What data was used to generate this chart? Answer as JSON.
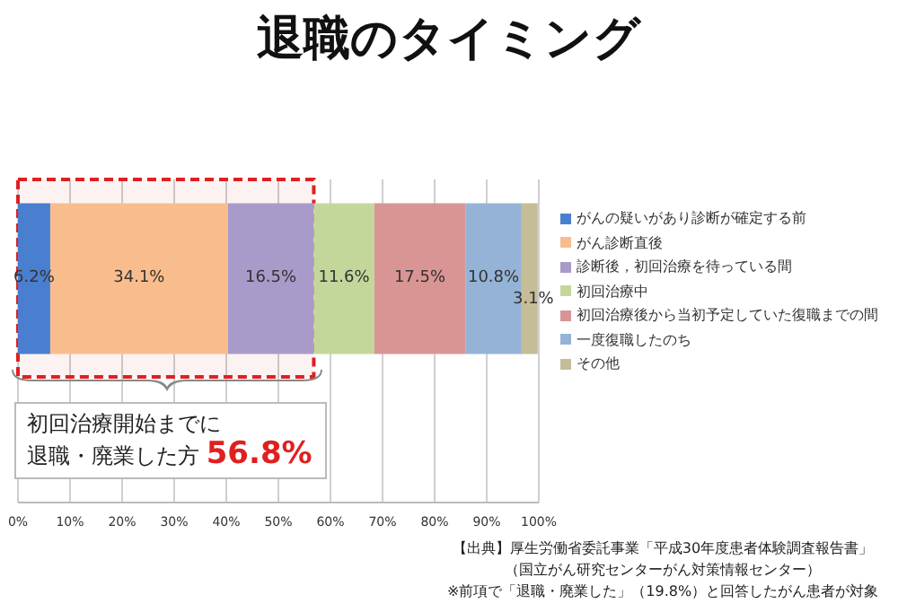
{
  "chart_data": {
    "type": "bar",
    "orientation": "horizontal",
    "stacked": true,
    "title": "退職のタイミング",
    "categories": [
      null
    ],
    "series": [
      {
        "name": "がんの疑いがあり診断が確定する前",
        "color": "#4a7fd0",
        "values": [
          6.2
        ],
        "value_labels": [
          "6.2%"
        ]
      },
      {
        "name": "がん診断直後",
        "color": "#f9bd8d",
        "values": [
          34.1
        ],
        "value_labels": [
          "34.1%"
        ]
      },
      {
        "name": "診断後，初回治療を待っている間",
        "color": "#a99bc9",
        "values": [
          16.5
        ],
        "value_labels": [
          "16.5%"
        ]
      },
      {
        "name": "初回治療中",
        "color": "#c4d79b",
        "values": [
          11.6
        ],
        "value_labels": [
          "11.6%"
        ]
      },
      {
        "name": "初回治療後から当初予定していた復職までの間",
        "color": "#d99594",
        "values": [
          17.5
        ],
        "value_labels": [
          "17.5%"
        ]
      },
      {
        "name": "一度復職したのち",
        "color": "#95b3d7",
        "values": [
          10.8
        ],
        "value_labels": [
          "10.8%"
        ]
      },
      {
        "name": "その他",
        "color": "#c4bd97",
        "values": [
          3.1
        ],
        "value_labels": [
          "3.1%"
        ]
      }
    ],
    "xlim": [
      0,
      100
    ],
    "xticks": [
      {
        "value": 0,
        "label": "0%"
      },
      {
        "value": 10,
        "label": "10%"
      },
      {
        "value": 20,
        "label": "20%"
      },
      {
        "value": 30,
        "label": "30%"
      },
      {
        "value": 40,
        "label": "40%"
      },
      {
        "value": 50,
        "label": "50%"
      },
      {
        "value": 60,
        "label": "60%"
      },
      {
        "value": 70,
        "label": "70%"
      },
      {
        "value": 80,
        "label": "80%"
      },
      {
        "value": 90,
        "label": "90%"
      },
      {
        "value": 100,
        "label": "100%"
      }
    ],
    "grid": "x",
    "bands": [
      {
        "axis": "x",
        "from": 0,
        "to": 56.8,
        "color": "#e02020"
      }
    ],
    "legend": "right",
    "annotations": [
      "初回治療開始までに",
      "退職・廃業した方",
      "56.8%",
      "【出典】厚生労働省委託事業「平成30年度患者体験調査報告書」",
      "（国立がん研究センターがん対策情報センター）",
      "※前項で「退職・廃業した」（19.8%）と回答したがん患者が対象"
    ]
  }
}
